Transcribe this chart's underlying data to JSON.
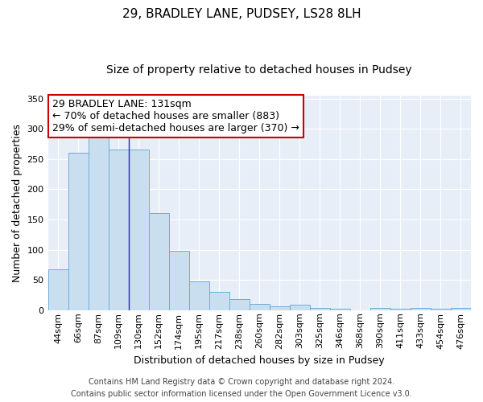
{
  "title": "29, BRADLEY LANE, PUDSEY, LS28 8LH",
  "subtitle": "Size of property relative to detached houses in Pudsey",
  "xlabel": "Distribution of detached houses by size in Pudsey",
  "ylabel": "Number of detached properties",
  "categories": [
    "44sqm",
    "66sqm",
    "87sqm",
    "109sqm",
    "130sqm",
    "152sqm",
    "174sqm",
    "195sqm",
    "217sqm",
    "238sqm",
    "260sqm",
    "282sqm",
    "303sqm",
    "325sqm",
    "346sqm",
    "368sqm",
    "390sqm",
    "411sqm",
    "433sqm",
    "454sqm",
    "476sqm"
  ],
  "values": [
    68,
    260,
    295,
    265,
    265,
    160,
    98,
    48,
    30,
    18,
    10,
    6,
    9,
    4,
    3,
    0,
    4,
    3,
    4,
    3,
    4
  ],
  "bar_color": "#c9dff0",
  "bar_edge_color": "#6aaed6",
  "property_line_x": 3.5,
  "annotation_line1": "29 BRADLEY LANE: 131sqm",
  "annotation_line2": "← 70% of detached houses are smaller (883)",
  "annotation_line3": "29% of semi-detached houses are larger (370) →",
  "annotation_box_facecolor": "#ffffff",
  "annotation_box_edgecolor": "#cc0000",
  "property_line_color": "#2222cc",
  "axes_facecolor": "#e8eef8",
  "grid_color": "#ffffff",
  "fig_facecolor": "#ffffff",
  "ylim": [
    0,
    355
  ],
  "yticks": [
    0,
    50,
    100,
    150,
    200,
    250,
    300,
    350
  ],
  "footer_line1": "Contains HM Land Registry data © Crown copyright and database right 2024.",
  "footer_line2": "Contains public sector information licensed under the Open Government Licence v3.0.",
  "title_fontsize": 11,
  "subtitle_fontsize": 10,
  "xlabel_fontsize": 9,
  "ylabel_fontsize": 9,
  "tick_fontsize": 8,
  "footer_fontsize": 7,
  "annotation_fontsize": 9
}
